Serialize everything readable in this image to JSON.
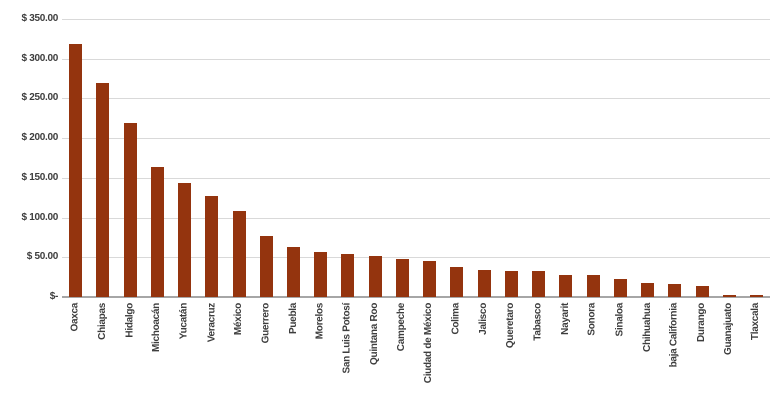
{
  "chart_data": {
    "type": "bar",
    "title": "",
    "xlabel": "",
    "ylabel": "",
    "legend": null,
    "grid": true,
    "ylim": [
      0,
      350
    ],
    "ytick_interval": 50,
    "ytick_labels": [
      "$-",
      "$ 50.00",
      "$ 100.00",
      "$ 150.00",
      "$ 200.00",
      "$ 250.00",
      "$ 300.00",
      "$ 350.00"
    ],
    "categories": [
      "Oaxca",
      "Chiapas",
      "Hidalgo",
      "Michoacán",
      "Yucatán",
      "Veracruz",
      "México",
      "Guerrero",
      "Puebla",
      "Morelos",
      "San Luis Potosí",
      "Quintana Roo",
      "Campeche",
      "Ciudad de México",
      "Colima",
      "Jalisco",
      "Queretaro",
      "Tabasco",
      "Nayarit",
      "Sonora",
      "Sinaloa",
      "Chihuahua",
      "baja California",
      "Durango",
      "Guanajuato",
      "Tlaxcala"
    ],
    "values": [
      318.9,
      268.9,
      218.9,
      163.3,
      143.8,
      127.0,
      107.8,
      76.6,
      63.0,
      56.9,
      54.5,
      51.1,
      48.2,
      45.4,
      37.6,
      33.8,
      33.2,
      32.5,
      28.2,
      27.9,
      22.8,
      18.2,
      16.7,
      14.0,
      3.2,
      2.6
    ]
  },
  "styles": {
    "bar_color": "#94340e",
    "gridline_color": "#d9d9d9",
    "axis_line_color": "#a6a6a6",
    "label_color": "#3d3d3d",
    "background": "#ffffff"
  }
}
